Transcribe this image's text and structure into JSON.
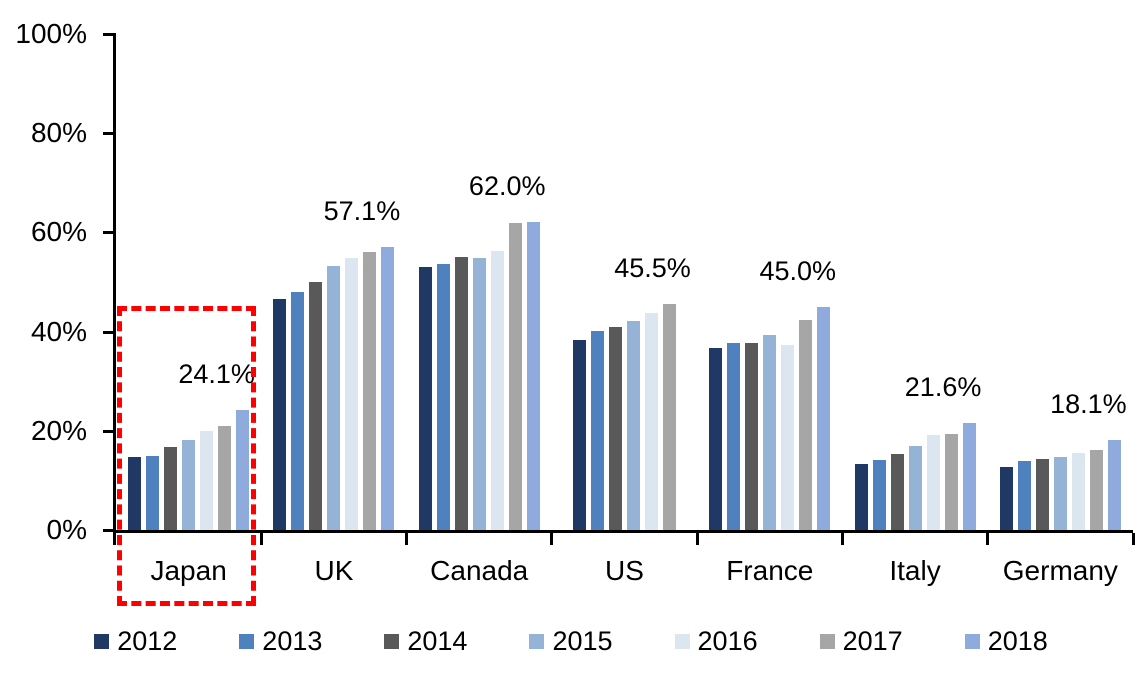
{
  "chart_data": {
    "type": "bar",
    "title": "",
    "xlabel": "",
    "ylabel": "",
    "categories": [
      "Japan",
      "UK",
      "Canada",
      "US",
      "France",
      "Italy",
      "Germany"
    ],
    "series": [
      {
        "name": "2012",
        "color": "#1F3864",
        "values": [
          14.7,
          46.5,
          53.1,
          38.4,
          36.7,
          13.4,
          12.7
        ]
      },
      {
        "name": "2013",
        "color": "#4E81BD",
        "values": [
          15.0,
          47.9,
          53.6,
          40.1,
          37.8,
          14.2,
          14.0
        ]
      },
      {
        "name": "2014",
        "color": "#595959",
        "values": [
          16.7,
          50.0,
          55.0,
          41.0,
          37.8,
          15.4,
          14.4
        ]
      },
      {
        "name": "2015",
        "color": "#95B3D7",
        "values": [
          18.2,
          53.2,
          54.8,
          42.2,
          39.4,
          17.0,
          14.8
        ]
      },
      {
        "name": "2016",
        "color": "#DCE6F1",
        "values": [
          20.0,
          54.9,
          56.2,
          43.7,
          37.4,
          19.1,
          15.5
        ]
      },
      {
        "name": "2017",
        "color": "#A6A6A6",
        "values": [
          21.0,
          56.0,
          61.8,
          45.5,
          42.4,
          19.3,
          16.1
        ]
      },
      {
        "name": "2018",
        "color": "#8FAADC",
        "values": [
          24.1,
          57.1,
          62.0,
          null,
          45.0,
          21.6,
          18.1
        ]
      }
    ],
    "data_labels": [
      "24.1%",
      "57.1%",
      "62.0%",
      "45.5%",
      "45.0%",
      "21.6%",
      "18.1%"
    ],
    "ylim": [
      0,
      100
    ],
    "yticks": [
      0,
      20,
      40,
      60,
      80,
      100
    ],
    "ytick_labels": [
      "0%",
      "20%",
      "40%",
      "60%",
      "80%",
      "100%"
    ],
    "grid": false,
    "legend_position": "bottom",
    "annotation": {
      "type": "dashed-box",
      "color": "#FF0000",
      "target_category": "Japan"
    },
    "axis_color": "#000000",
    "label_color": "#000000"
  }
}
